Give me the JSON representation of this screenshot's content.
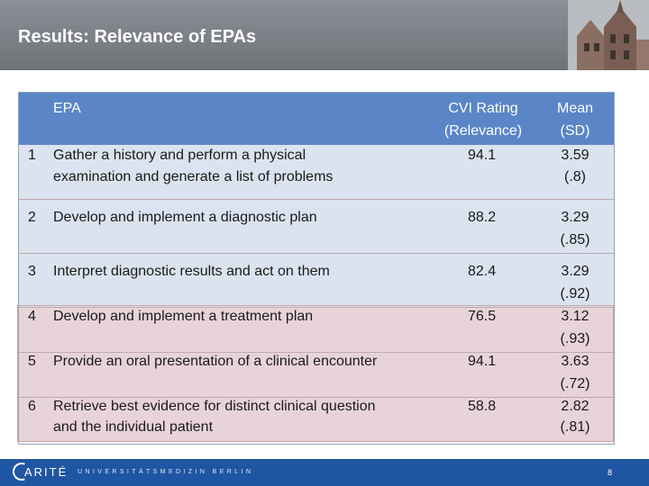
{
  "slide": {
    "title": "Results: Relevance of EPAs",
    "page_number": "8"
  },
  "table": {
    "headers": {
      "epa": "EPA",
      "cvi_line1": "CVI Rating",
      "cvi_line2": "(Relevance)",
      "mean_line1": "Mean",
      "mean_line2": "(SD)"
    },
    "rows": [
      {
        "num": "1",
        "text_line1": "Gather a history and perform a physical",
        "text_line2": "examination and generate a list of problems",
        "cvi": "94.1",
        "mean": "3.59",
        "sd": "(.8)"
      },
      {
        "num": "2",
        "text_line1": "Develop and implement a diagnostic plan",
        "text_line2": "",
        "cvi": "88.2",
        "mean": "3.29",
        "sd": "(.85)"
      },
      {
        "num": "3",
        "text_line1": "Interpret diagnostic results and act on them",
        "text_line2": "",
        "cvi": "82.4",
        "mean": "3.29",
        "sd": "(.92)"
      },
      {
        "num": "4",
        "text_line1": "Develop and implement a treatment plan",
        "text_line2": "",
        "cvi": "76.5",
        "mean": "3.12",
        "sd": "(.93)"
      },
      {
        "num": "5",
        "text_line1": "Provide an oral presentation of a clinical encounter",
        "text_line2": "",
        "cvi": "94.1",
        "mean": "3.63",
        "sd": "(.72)"
      },
      {
        "num": "6",
        "text_line1": "Retrieve best evidence for distinct clinical question",
        "text_line2": "and the individual patient",
        "cvi": "58.8",
        "mean": "2.82",
        "sd": "(.81)"
      }
    ]
  },
  "footer": {
    "logo_text": "ARITÉ",
    "university_text": "UNIVERSITÄTSMEDIZIN BERLIN"
  },
  "colors": {
    "header_bg": "#7b7f85",
    "table_header_bg": "#5a86c8",
    "band_blue": "#dbe3f0",
    "band_pink": "#e8d4d8",
    "footer_bg": "#1f56a3"
  }
}
